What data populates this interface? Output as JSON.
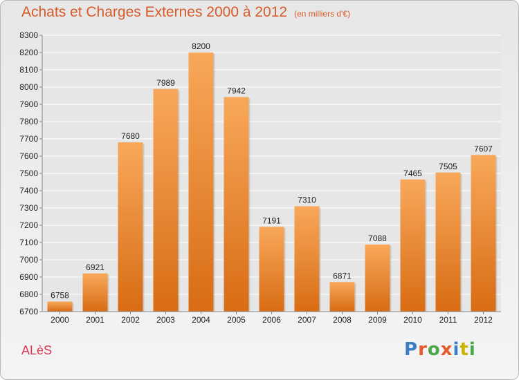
{
  "header": {
    "title": "Achats et Charges Externes 2000 à 2012",
    "subtitle": "(en milliers d'€)"
  },
  "footer": {
    "place": "ALèS",
    "logo": "Proxiti",
    "logo_colors": [
      "#3a7ec4",
      "#e8592b",
      "#4aa84a",
      "#e8592b",
      "#3a7ec4",
      "#c8b400",
      "#4aa84a"
    ]
  },
  "chart_data": {
    "type": "bar",
    "categories": [
      "2000",
      "2001",
      "2002",
      "2003",
      "2004",
      "2005",
      "2006",
      "2007",
      "2008",
      "2009",
      "2010",
      "2011",
      "2012"
    ],
    "values": [
      6758,
      6921,
      7680,
      7989,
      8200,
      7942,
      7191,
      7310,
      6871,
      7088,
      7465,
      7505,
      7607
    ],
    "data_labels": [
      "6758",
      "6921",
      "7680",
      "7989",
      "8200",
      "7942",
      "7191",
      "7310",
      "6871",
      "7088",
      "7465",
      "7505",
      "7607"
    ],
    "yticks": [
      "6700",
      "6800",
      "6900",
      "7000",
      "7100",
      "7200",
      "7300",
      "7400",
      "7500",
      "7600",
      "7700",
      "7800",
      "7900",
      "8000",
      "8100",
      "8200",
      "8300"
    ],
    "ylim": [
      6700,
      8300
    ],
    "grid": true,
    "colors": {
      "bar_light": "#f8a85a",
      "bar_dark": "#d86c14",
      "plot_bg": "#e6e6e6",
      "grid": "#ffffff",
      "axis_text": "#222222"
    }
  }
}
